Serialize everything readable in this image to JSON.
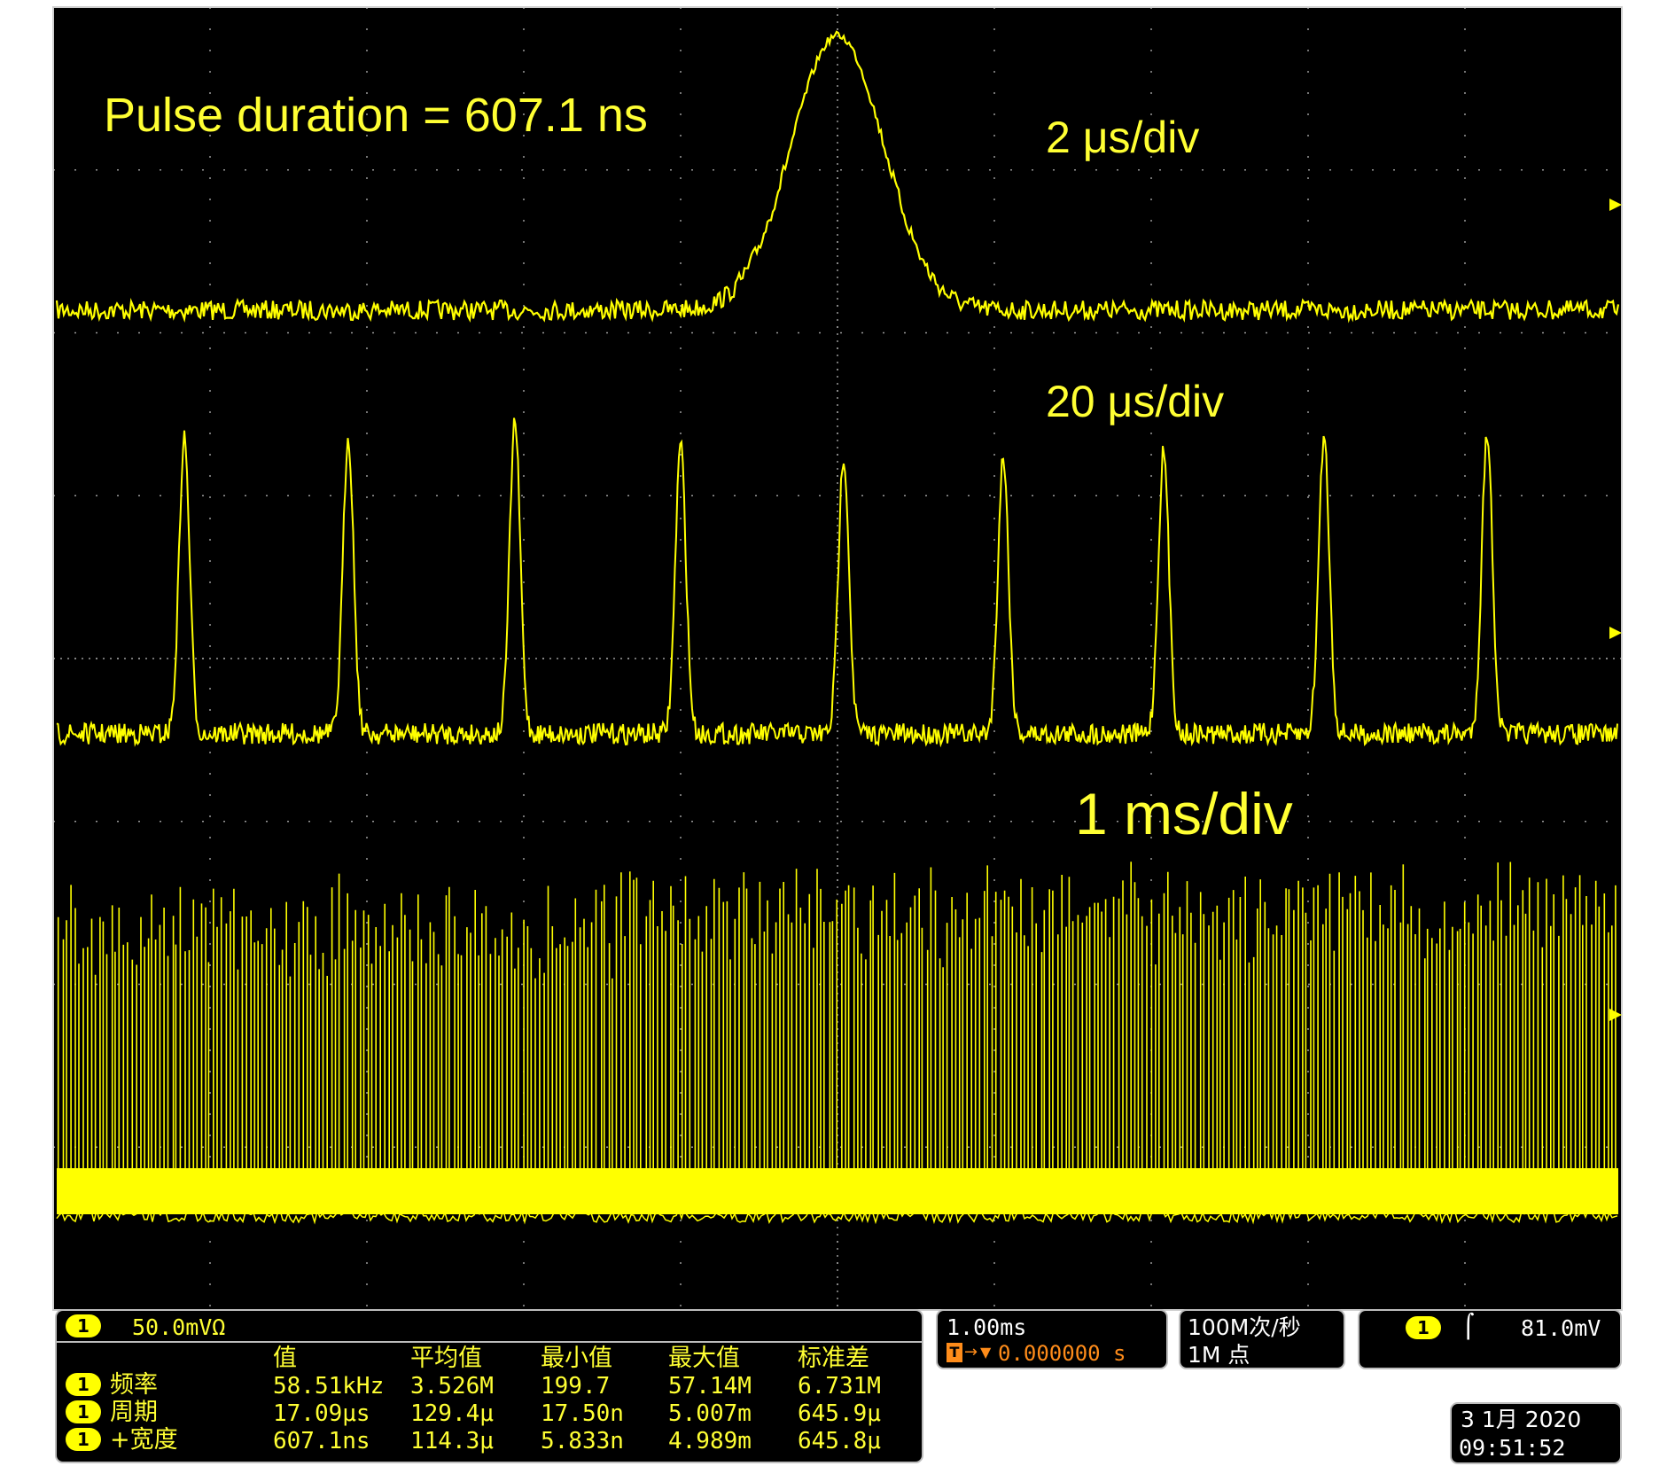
{
  "colors": {
    "trace": "#ffff00",
    "text": "#ffff33",
    "screen": "#000000",
    "grid": "#9a9a9a",
    "panel_border": "#bdbdbd"
  },
  "annotations": {
    "pulse_duration": "Pulse duration = 607.1 ns",
    "scale_top": "2 μs/div",
    "scale_mid": "20 μs/div",
    "scale_bottom": "1 ms/div"
  },
  "channel": {
    "badge": "1",
    "scale": "50.0mVΩ"
  },
  "measurements": {
    "headers": [
      "值",
      "平均值",
      "最小值",
      "最大值",
      "标准差"
    ],
    "rows": [
      {
        "badge": "1",
        "name": "频率",
        "value": "58.51kHz",
        "mean": "3.526M",
        "min": "199.7",
        "max": "57.14M",
        "std": "6.731M"
      },
      {
        "badge": "1",
        "name": "周期",
        "value": "17.09μs",
        "mean": "129.4μ",
        "min": "17.50n",
        "max": "5.007m",
        "std": "645.9μ"
      },
      {
        "badge": "1",
        "name": "+宽度",
        "value": "607.1ns",
        "mean": "114.3μ",
        "min": "5.833n",
        "max": "4.989m",
        "std": "645.8μ"
      }
    ]
  },
  "timebase": {
    "scale": "1.00ms",
    "trigger_position": "0.000000 s",
    "trigger_icon": "trigger-position-icon"
  },
  "acquisition": {
    "sample_rate": "100M次/秒",
    "record_length": "1M 点"
  },
  "trigger": {
    "badge": "1",
    "slope_icon": "rising-edge-icon",
    "level": "81.0mV"
  },
  "datetime": {
    "date": "3 1月 2020",
    "time": "09:51:52"
  },
  "chart_data": {
    "type": "line",
    "title": "",
    "xlabel": "",
    "ylabel": "",
    "grid": true,
    "series": [
      {
        "timebase": "2 μs/div",
        "shape": "single gaussian pulse",
        "pulse_fwhm_ns": 607.1
      },
      {
        "timebase": "20 μs/div",
        "shape": "periodic pulse train",
        "period_us": 17.09,
        "pulses_visible": 9
      },
      {
        "timebase": "1 ms/div",
        "shape": "dense pulse train",
        "frequency_kHz": 58.51
      }
    ]
  }
}
